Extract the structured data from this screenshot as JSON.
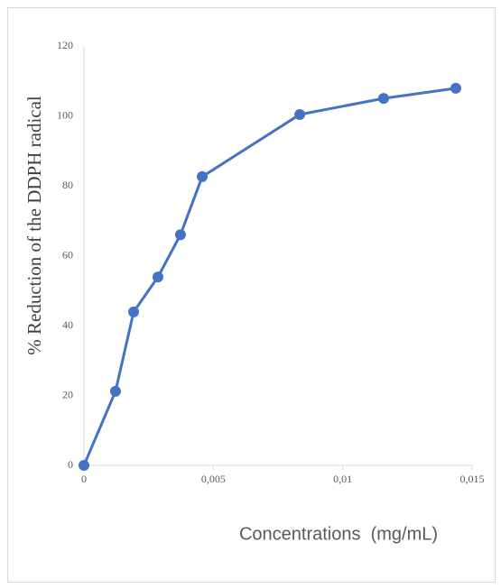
{
  "chart_data": {
    "type": "line",
    "x": [
      0,
      0.00122,
      0.00192,
      0.00286,
      0.00373,
      0.00457,
      0.00834,
      0.01158,
      0.01437
    ],
    "values": [
      0,
      21.2,
      43.9,
      53.9,
      66,
      82.6,
      100.4,
      105,
      107.9
    ],
    "color": "#4472c4",
    "xlabel": "Concentrations  (mg/mL)",
    "ylabel": "% Reduction of the DDPH radical",
    "xlim": [
      0,
      0.015
    ],
    "xticks": [
      0,
      {
        "value": 0.005,
        "label": "0,005"
      },
      {
        "value": 0.01,
        "label": "0,01"
      },
      {
        "value": 0.015,
        "label": "0,015"
      }
    ],
    "ylim": [
      0,
      120
    ],
    "yticks": [
      0,
      20,
      40,
      60,
      80,
      100,
      120
    ],
    "grid": false
  }
}
